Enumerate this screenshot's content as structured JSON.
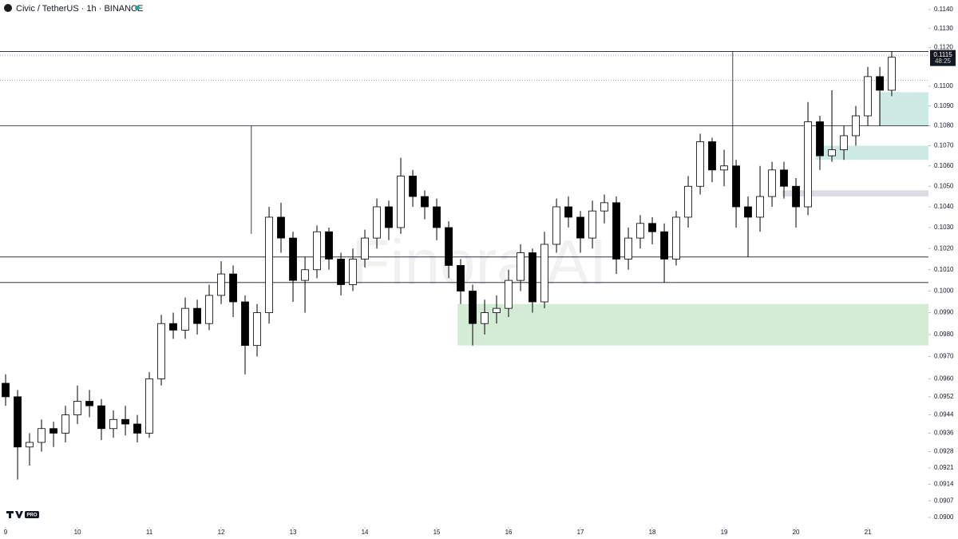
{
  "header": {
    "symbol": "Civic / TetherUS · 1h · BINANCE",
    "logo_badge": "PRO",
    "watermark": "Finora AI"
  },
  "chart_data": {
    "type": "candlestick",
    "log_scale": true,
    "grid": false,
    "up_color": "#ffffff",
    "down_color": "#000000",
    "xlim": [
      8.922,
      21.844
    ],
    "xticks": [
      9,
      10,
      11,
      12,
      13,
      14,
      15,
      16,
      17,
      18,
      19,
      20,
      21
    ],
    "ylim": [
      0.09,
      0.114
    ],
    "yticks": [
      {
        "value": 0.114,
        "label": "0.1140"
      },
      {
        "value": 0.113,
        "label": "0.1130"
      },
      {
        "value": 0.112,
        "label": "0.1120"
      },
      {
        "value": 0.11,
        "label": "0.1100"
      },
      {
        "value": 0.109,
        "label": "0.1090"
      },
      {
        "value": 0.108,
        "label": "0.1080"
      },
      {
        "value": 0.107,
        "label": "0.1070"
      },
      {
        "value": 0.106,
        "label": "0.1060"
      },
      {
        "value": 0.105,
        "label": "0.1050"
      },
      {
        "value": 0.104,
        "label": "0.1040"
      },
      {
        "value": 0.103,
        "label": "0.1030"
      },
      {
        "value": 0.102,
        "label": "0.1020"
      },
      {
        "value": 0.101,
        "label": "0.1010"
      },
      {
        "value": 0.1,
        "label": "0.1000"
      },
      {
        "value": 0.099,
        "label": "0.0990"
      },
      {
        "value": 0.098,
        "label": "0.0980"
      },
      {
        "value": 0.097,
        "label": "0.0970"
      },
      {
        "value": 0.096,
        "label": "0.0960"
      },
      0.0952,
      0.0944,
      0.0936,
      0.0928,
      0.0921,
      0.0914,
      0.0907,
      {
        "value": 0.09,
        "label": "0.0900"
      }
    ],
    "last_price": {
      "value": 0.1115,
      "label": "0.1115"
    },
    "countdown": "48:25",
    "levels": [
      0.1118,
      0.108,
      0.1016,
      0.1004
    ],
    "dotted_levels": [
      0.1116,
      0.1103
    ],
    "vlines": [
      {
        "x": 12.42,
        "top": 0.108,
        "bottom": 0.1027
      },
      {
        "x": 19.12,
        "top": 0.1118,
        "bottom": 0.104
      }
    ],
    "zones": [
      {
        "x": 15.29,
        "top": 0.0994,
        "bottom": 0.0975,
        "color": "#d4ecd5"
      },
      {
        "x": 21.155,
        "top": 0.1097,
        "bottom": 0.108,
        "color": "#cdeae4"
      },
      {
        "x": 20.278,
        "top": 0.107,
        "bottom": 0.1063,
        "color": "#cdeae4"
      },
      {
        "x": 19.811,
        "top": 0.1048,
        "bottom": 0.1045,
        "color": "#dcdce2"
      }
    ],
    "x": [
      9,
      9.167,
      9.333,
      9.5,
      9.667,
      9.833,
      10,
      10.167,
      10.333,
      10.5,
      10.667,
      10.833,
      11,
      11.167,
      11.333,
      11.5,
      11.667,
      11.833,
      12,
      12.167,
      12.333,
      12.5,
      12.667,
      12.833,
      13,
      13.167,
      13.333,
      13.5,
      13.667,
      13.833,
      14,
      14.167,
      14.333,
      14.5,
      14.667,
      14.833,
      15,
      15.167,
      15.333,
      15.5,
      15.667,
      15.833,
      16,
      16.167,
      16.333,
      16.5,
      16.667,
      16.833,
      17,
      17.167,
      17.333,
      17.5,
      17.667,
      17.833,
      18,
      18.167,
      18.333,
      18.5,
      18.667,
      18.833,
      19,
      19.167,
      19.333,
      19.5,
      19.667,
      19.833,
      20,
      20.167,
      20.333,
      20.5,
      20.667,
      20.833,
      21,
      21.167,
      21.333
    ],
    "open": [
      0.0958,
      0.0952,
      0.093,
      0.0932,
      0.0938,
      0.0936,
      0.0944,
      0.095,
      0.0948,
      0.0938,
      0.0942,
      0.094,
      0.0936,
      0.096,
      0.0985,
      0.0982,
      0.0992,
      0.0985,
      0.0998,
      0.1008,
      0.0995,
      0.0975,
      0.099,
      0.1035,
      0.1025,
      0.1005,
      0.101,
      0.1028,
      0.1015,
      0.1003,
      0.1015,
      0.1025,
      0.104,
      0.103,
      0.1055,
      0.1045,
      0.104,
      0.103,
      0.1012,
      0.1,
      0.0985,
      0.099,
      0.0992,
      0.1005,
      0.1018,
      0.0995,
      0.1022,
      0.104,
      0.1035,
      0.1025,
      0.1038,
      0.1042,
      0.1015,
      0.1025,
      0.1032,
      0.1028,
      0.1015,
      0.1035,
      0.105,
      0.1072,
      0.1058,
      0.106,
      0.104,
      0.1035,
      0.1045,
      0.1058,
      0.105,
      0.104,
      0.1082,
      0.1065,
      0.1068,
      0.1075,
      0.1085,
      0.1105,
      0.1098
    ],
    "high": [
      0.0962,
      0.0955,
      0.0936,
      0.0942,
      0.0941,
      0.0948,
      0.0957,
      0.0955,
      0.0951,
      0.0946,
      0.0948,
      0.0944,
      0.0963,
      0.0989,
      0.099,
      0.0997,
      0.0996,
      0.1003,
      0.1014,
      0.1012,
      0.0998,
      0.0994,
      0.104,
      0.1042,
      0.1028,
      0.1016,
      0.1031,
      0.103,
      0.1018,
      0.102,
      0.1029,
      0.1044,
      0.1043,
      0.1064,
      0.1058,
      0.1048,
      0.1044,
      0.1033,
      0.1015,
      0.1003,
      0.0996,
      0.0998,
      0.101,
      0.1022,
      0.102,
      0.1028,
      0.1044,
      0.1045,
      0.1038,
      0.1043,
      0.1046,
      0.1045,
      0.103,
      0.1036,
      0.1035,
      0.1032,
      0.1038,
      0.1055,
      0.1076,
      0.1074,
      0.1068,
      0.1063,
      0.1045,
      0.106,
      0.1062,
      0.1062,
      0.1054,
      0.1092,
      0.1085,
      0.1098,
      0.108,
      0.109,
      0.111,
      0.111,
      0.1118
    ],
    "low": [
      0.0948,
      0.0916,
      0.0922,
      0.0928,
      0.093,
      0.0932,
      0.094,
      0.0943,
      0.0933,
      0.0934,
      0.0935,
      0.0932,
      0.0934,
      0.0957,
      0.0978,
      0.0978,
      0.098,
      0.0982,
      0.0994,
      0.0988,
      0.0962,
      0.097,
      0.0985,
      0.1018,
      0.0995,
      0.099,
      0.1006,
      0.101,
      0.0998,
      0.1,
      0.1011,
      0.102,
      0.1024,
      0.1027,
      0.104,
      0.1034,
      0.1024,
      0.1006,
      0.0994,
      0.0975,
      0.098,
      0.0985,
      0.0988,
      0.1,
      0.099,
      0.0992,
      0.1018,
      0.103,
      0.1018,
      0.102,
      0.1032,
      0.1008,
      0.101,
      0.102,
      0.1022,
      0.1004,
      0.1012,
      0.103,
      0.1046,
      0.1052,
      0.105,
      0.103,
      0.1016,
      0.1028,
      0.104,
      0.1044,
      0.103,
      0.1036,
      0.1058,
      0.1062,
      0.1063,
      0.107,
      0.108,
      0.108,
      0.1095
    ],
    "close": [
      0.0952,
      0.093,
      0.0932,
      0.0938,
      0.0936,
      0.0944,
      0.095,
      0.0948,
      0.0938,
      0.0942,
      0.094,
      0.0936,
      0.096,
      0.0985,
      0.0982,
      0.0992,
      0.0985,
      0.0998,
      0.1008,
      0.0995,
      0.0975,
      0.099,
      0.1035,
      0.1025,
      0.1005,
      0.101,
      0.1028,
      0.1015,
      0.1003,
      0.1015,
      0.1025,
      0.104,
      0.103,
      0.1055,
      0.1045,
      0.104,
      0.103,
      0.1012,
      0.1,
      0.0985,
      0.099,
      0.0992,
      0.1005,
      0.1018,
      0.0995,
      0.1022,
      0.104,
      0.1035,
      0.1025,
      0.1038,
      0.1042,
      0.1015,
      0.1025,
      0.1032,
      0.1028,
      0.1015,
      0.1035,
      0.105,
      0.1072,
      0.1058,
      0.106,
      0.104,
      0.1035,
      0.1045,
      0.1058,
      0.105,
      0.104,
      0.1082,
      0.1065,
      0.1068,
      0.1075,
      0.1085,
      0.1105,
      0.1098,
      0.1115
    ]
  }
}
